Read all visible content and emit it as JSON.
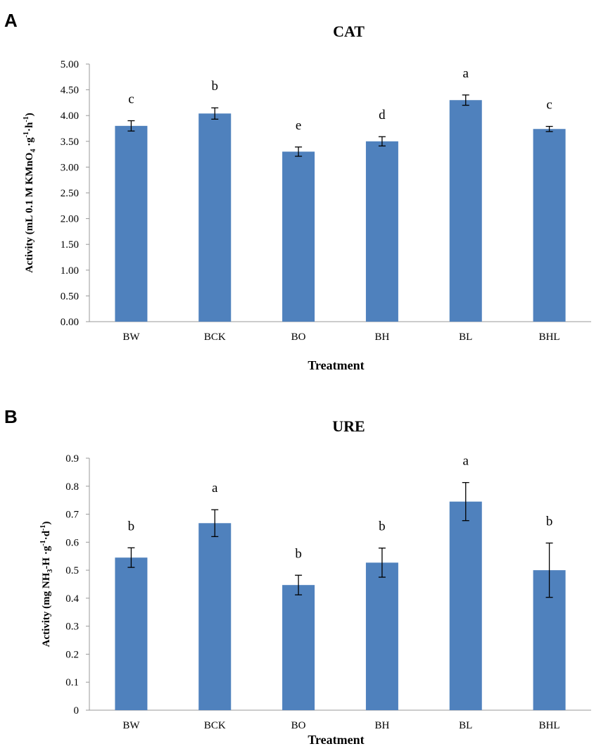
{
  "chart_data": [
    {
      "panel": "A",
      "type": "bar",
      "title": "CAT",
      "xlabel": "Treatment",
      "ylabel_main": "Activity (mL 0.1 M KMnO",
      "ylabel_sub1": "4",
      "ylabel_mid": " ·g",
      "ylabel_sup1": "-1",
      "ylabel_mid2": "·h",
      "ylabel_sup2": "-1",
      "ylabel_end": ")",
      "categories": [
        "BW",
        "BCK",
        "BO",
        "BH",
        "BL",
        "BHL"
      ],
      "values": [
        3.8,
        4.04,
        3.3,
        3.5,
        4.3,
        3.74
      ],
      "errors": [
        0.1,
        0.11,
        0.09,
        0.09,
        0.1,
        0.05
      ],
      "letters": [
        "c",
        "b",
        "e",
        "d",
        "a",
        "c"
      ],
      "ylim": [
        0,
        5
      ],
      "ticks": [
        0,
        0.5,
        1,
        1.5,
        2,
        2.5,
        3,
        3.5,
        4,
        4.5,
        5
      ],
      "tick_labels": [
        "0.00",
        "0.50",
        "1.00",
        "1.50",
        "2.00",
        "2.50",
        "3.00",
        "3.50",
        "4.00",
        "4.50",
        "5.00"
      ],
      "bar_color": "#4f81bd"
    },
    {
      "panel": "B",
      "type": "bar",
      "title": "URE",
      "xlabel": "Treatment",
      "ylabel_main": "Activity (mg NH",
      "ylabel_sub1": "3",
      "ylabel_mid": "-H ·g",
      "ylabel_sup1": "-1",
      "ylabel_mid2": "·d",
      "ylabel_sup2": "-1",
      "ylabel_end": ")",
      "categories": [
        "BW",
        "BCK",
        "BO",
        "BH",
        "BL",
        "BHL"
      ],
      "values": [
        0.545,
        0.668,
        0.447,
        0.527,
        0.745,
        0.5
      ],
      "errors": [
        0.035,
        0.048,
        0.035,
        0.052,
        0.068,
        0.097
      ],
      "letters": [
        "b",
        "a",
        "b",
        "b",
        "a",
        "b"
      ],
      "ylim": [
        0,
        0.9
      ],
      "ticks": [
        0,
        0.1,
        0.2,
        0.3,
        0.4,
        0.5,
        0.6,
        0.7,
        0.8,
        0.9
      ],
      "tick_labels": [
        "0",
        "0.1",
        "0.2",
        "0.3",
        "0.4",
        "0.5",
        "0.6",
        "0.7",
        "0.8",
        "0.9"
      ],
      "bar_color": "#4f81bd"
    }
  ],
  "panel_labels": {
    "a": "A",
    "b": "B"
  }
}
